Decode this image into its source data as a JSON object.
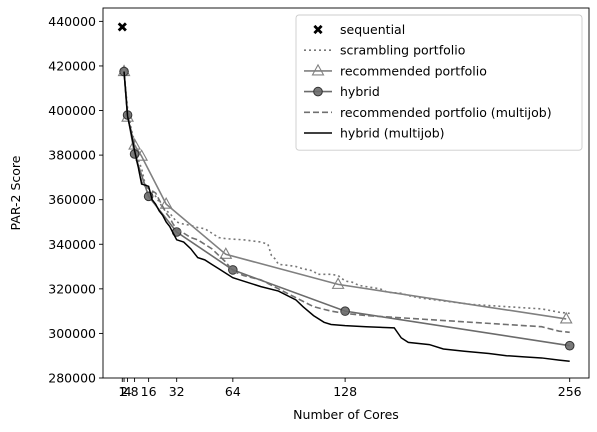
{
  "chart_data": {
    "type": "line",
    "title": "",
    "xlabel": "Number of Cores",
    "ylabel": "PAR-2 Score",
    "xlim": [
      -10,
      267
    ],
    "ylim": [
      280000,
      446000
    ],
    "xticks": [
      1,
      2,
      4,
      8,
      16,
      32,
      64,
      128,
      256
    ],
    "yticks": [
      280000,
      300000,
      320000,
      340000,
      360000,
      380000,
      400000,
      420000,
      440000
    ],
    "grid": false,
    "legend_position": "top-right",
    "series": [
      {
        "name": "sequential",
        "style": "marker-x",
        "color": "#000000",
        "points": [
          [
            1,
            437500
          ]
        ]
      },
      {
        "name": "scrambling portfolio",
        "style": "dotted",
        "color": "#777777",
        "points": [
          [
            2,
            417500
          ],
          [
            4,
            401000
          ],
          [
            6,
            392000
          ],
          [
            8,
            386000
          ],
          [
            10,
            378000
          ],
          [
            12,
            374000
          ],
          [
            14,
            367000
          ],
          [
            16,
            365000
          ],
          [
            18,
            363500
          ],
          [
            20,
            361500
          ],
          [
            22,
            359000
          ],
          [
            24,
            356500
          ],
          [
            26,
            355000
          ],
          [
            28,
            354000
          ],
          [
            30,
            352000
          ],
          [
            32,
            350000
          ],
          [
            36,
            349000
          ],
          [
            40,
            348500
          ],
          [
            44,
            347500
          ],
          [
            48,
            347000
          ],
          [
            52,
            345000
          ],
          [
            56,
            343000
          ],
          [
            60,
            342500
          ],
          [
            70,
            342000
          ],
          [
            80,
            341000
          ],
          [
            84,
            340000
          ],
          [
            86,
            335000
          ],
          [
            88,
            333500
          ],
          [
            90,
            331000
          ],
          [
            96,
            330500
          ],
          [
            100,
            330000
          ],
          [
            104,
            329000
          ],
          [
            110,
            328000
          ],
          [
            112,
            326500
          ],
          [
            120,
            326500
          ],
          [
            124,
            326000
          ],
          [
            128,
            323500
          ],
          [
            132,
            323000
          ],
          [
            136,
            321500
          ],
          [
            140,
            321000
          ],
          [
            148,
            320000
          ],
          [
            152,
            318500
          ],
          [
            160,
            318000
          ],
          [
            164,
            317000
          ],
          [
            170,
            316000
          ],
          [
            180,
            315000
          ],
          [
            190,
            314000
          ],
          [
            200,
            313000
          ],
          [
            210,
            312500
          ],
          [
            220,
            312000
          ],
          [
            230,
            311500
          ],
          [
            240,
            311000
          ],
          [
            250,
            309500
          ],
          [
            256,
            309000
          ]
        ]
      },
      {
        "name": "recommended portfolio",
        "style": "solid-triangle",
        "color": "#808080",
        "points": [
          [
            2,
            417500
          ],
          [
            4,
            397000
          ],
          [
            8,
            384500
          ],
          [
            12,
            379500
          ],
          [
            26,
            358000
          ],
          [
            60,
            335500
          ],
          [
            124,
            322000
          ],
          [
            254,
            306500
          ]
        ]
      },
      {
        "name": "hybrid",
        "style": "solid-circle",
        "color": "#6b6b6b",
        "points": [
          [
            2,
            417500
          ],
          [
            4,
            398000
          ],
          [
            8,
            380500
          ],
          [
            16,
            361500
          ],
          [
            32,
            345500
          ],
          [
            64,
            328500
          ],
          [
            128,
            310000
          ],
          [
            256,
            294500
          ]
        ]
      },
      {
        "name": "recommended portfolio (multijob)",
        "style": "dashed",
        "color": "#707070",
        "points": [
          [
            2,
            417500
          ],
          [
            4,
            398000
          ],
          [
            6,
            391000
          ],
          [
            8,
            381000
          ],
          [
            10,
            375000
          ],
          [
            12,
            368000
          ],
          [
            14,
            366000
          ],
          [
            16,
            365000
          ],
          [
            18,
            364000
          ],
          [
            20,
            363000
          ],
          [
            22,
            360000
          ],
          [
            24,
            357000
          ],
          [
            26,
            354000
          ],
          [
            28,
            352000
          ],
          [
            30,
            349000
          ],
          [
            32,
            347000
          ],
          [
            36,
            345000
          ],
          [
            40,
            343000
          ],
          [
            44,
            342000
          ],
          [
            48,
            340000
          ],
          [
            52,
            338000
          ],
          [
            56,
            335000
          ],
          [
            60,
            332000
          ],
          [
            64,
            328000
          ],
          [
            70,
            326000
          ],
          [
            80,
            324000
          ],
          [
            90,
            320000
          ],
          [
            100,
            316000
          ],
          [
            110,
            312000
          ],
          [
            120,
            310000
          ],
          [
            128,
            309000
          ],
          [
            140,
            308000
          ],
          [
            160,
            307000
          ],
          [
            180,
            306000
          ],
          [
            200,
            305000
          ],
          [
            220,
            304000
          ],
          [
            240,
            303000
          ],
          [
            250,
            301000
          ],
          [
            256,
            300500
          ]
        ]
      },
      {
        "name": "hybrid (multijob)",
        "style": "solid",
        "color": "#000000",
        "points": [
          [
            2,
            417500
          ],
          [
            4,
            397500
          ],
          [
            6,
            390000
          ],
          [
            8,
            382000
          ],
          [
            10,
            375000
          ],
          [
            12,
            367000
          ],
          [
            14,
            366500
          ],
          [
            16,
            366000
          ],
          [
            18,
            360000
          ],
          [
            20,
            358000
          ],
          [
            22,
            355000
          ],
          [
            24,
            353000
          ],
          [
            26,
            350000
          ],
          [
            28,
            348000
          ],
          [
            30,
            345000
          ],
          [
            32,
            342000
          ],
          [
            36,
            341000
          ],
          [
            40,
            338000
          ],
          [
            44,
            334000
          ],
          [
            48,
            333000
          ],
          [
            52,
            331000
          ],
          [
            56,
            329000
          ],
          [
            60,
            327000
          ],
          [
            64,
            325000
          ],
          [
            70,
            323500
          ],
          [
            80,
            321000
          ],
          [
            90,
            319000
          ],
          [
            100,
            315000
          ],
          [
            104,
            312000
          ],
          [
            110,
            308000
          ],
          [
            116,
            305000
          ],
          [
            120,
            304000
          ],
          [
            128,
            303500
          ],
          [
            140,
            303000
          ],
          [
            156,
            302500
          ],
          [
            160,
            298000
          ],
          [
            164,
            296000
          ],
          [
            176,
            295000
          ],
          [
            184,
            293000
          ],
          [
            196,
            292000
          ],
          [
            210,
            291000
          ],
          [
            220,
            290000
          ],
          [
            230,
            289500
          ],
          [
            240,
            289000
          ],
          [
            250,
            288000
          ],
          [
            256,
            287500
          ]
        ]
      }
    ]
  }
}
